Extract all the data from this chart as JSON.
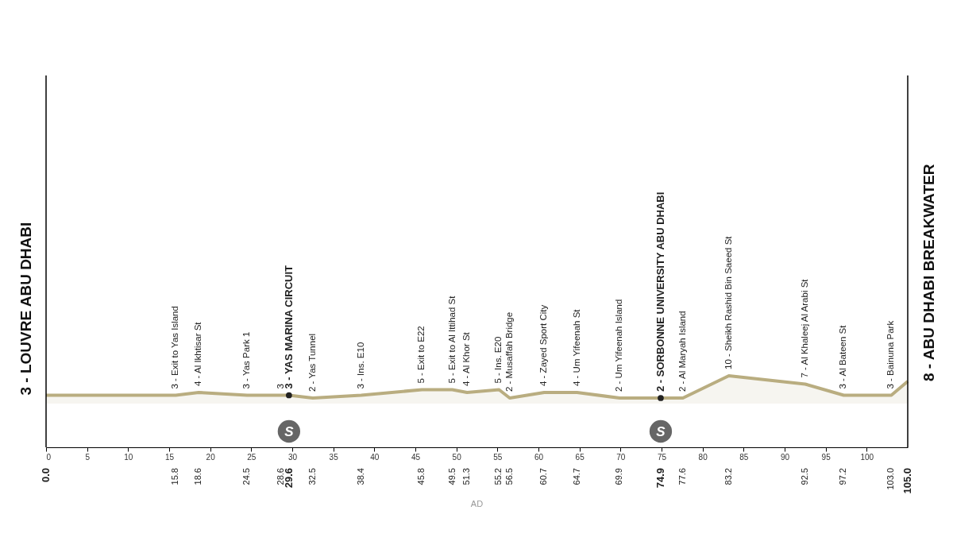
{
  "chart_data": {
    "type": "area",
    "tick_labels": "x",
    "grid": false,
    "x": [
      0,
      15.8,
      18.6,
      24.5,
      28.6,
      29.6,
      32.5,
      38.4,
      45.8,
      49.5,
      51.3,
      55.2,
      56.5,
      60.7,
      64.7,
      69.9,
      74.9,
      77.6,
      83.2,
      92.5,
      97.2,
      103.0,
      105.0
    ],
    "series": [
      {
        "color": "#b9ad80",
        "values": [
          3,
          3,
          4,
          3,
          3,
          3,
          2,
          3,
          5,
          5,
          4,
          5,
          2,
          4,
          4,
          2,
          2,
          2,
          10,
          7,
          3,
          3,
          8
        ],
        "value_labels": [
          "3 - LOUVRE ABU DHABI",
          "3 - Exit to Yas Island",
          "4 - Al Ikhtisar St",
          "3 - Yas Park 1",
          "3",
          "3 - YAS MARINA CIRCUIT",
          "2 - Yas Tunnel",
          "3 - Ins. E10",
          "5 - Exit to E22",
          "5 - Exit to Al Ittihad St",
          "4 - Al Khor St",
          "5 - Ins. E20",
          "2 - Musaffah Bridge",
          "4 - Zayed Sport City",
          "4 - Um Yifeenah St",
          "2 - Um Yifeenah Island",
          "2 - SORBONNE UNIVERSITY ABU DHABI",
          "2 - Al Maryah Island",
          "10 - Sheikh Rashid Bin Saeed St",
          "7 - Al Khaleej Al Arabi St",
          "3 - Al Bateen St",
          "3 - Bainuna Park",
          "8 - ABU DHABI BREAKWATER"
        ]
      }
    ],
    "xlim": [
      0,
      105
    ],
    "xticks": [
      0,
      5,
      10,
      15,
      20,
      25,
      30,
      35,
      40,
      45,
      50,
      55,
      60,
      65,
      70,
      75,
      80,
      85,
      90,
      95,
      100
    ],
    "x2lim": [
      0,
      105
    ],
    "x2ticks": [
      {
        "value": 0,
        "label": "0.0"
      },
      15.8,
      18.6,
      24.5,
      28.6,
      29.6,
      32.5,
      38.4,
      45.8,
      49.5,
      51.3,
      55.2,
      56.5,
      60.7,
      64.7,
      69.9,
      74.9,
      77.6,
      83.2,
      92.5,
      97.2,
      {
        "value": 103,
        "label": "103.0"
      },
      {
        "value": 105,
        "label": "105.0"
      }
    ],
    "ref_lines": [
      {
        "axis": "x",
        "value": 0,
        "color": "#000000"
      },
      {
        "axis": "x",
        "value": 105,
        "color": "#000000"
      }
    ],
    "annotations": [
      {
        "text": "S",
        "x": 29.6,
        "y": 3
      },
      {
        "text": "S",
        "x": 74.9,
        "y": 2
      },
      "AD"
    ]
  }
}
